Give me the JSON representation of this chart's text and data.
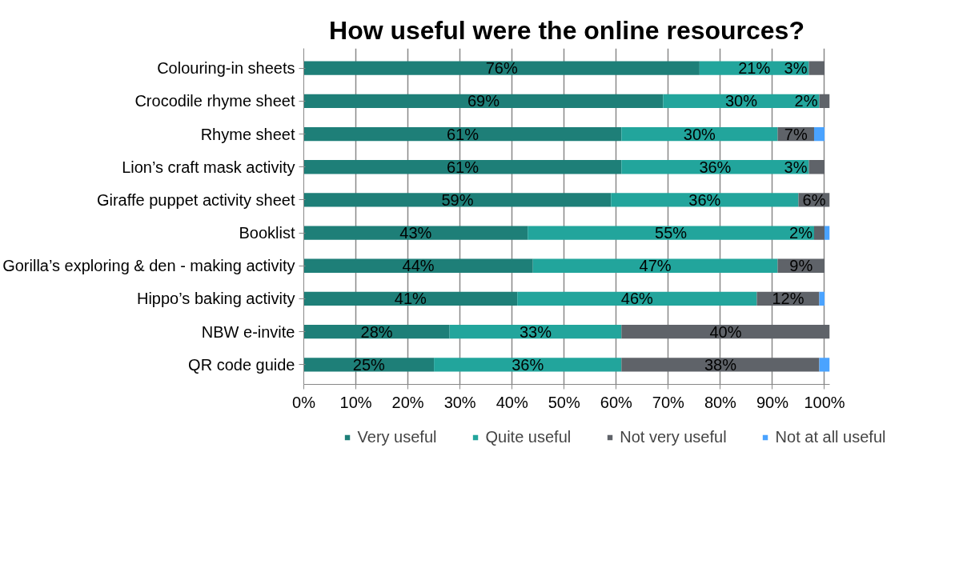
{
  "chart_data": {
    "type": "bar",
    "orientation": "horizontal",
    "stacked": true,
    "title": "How useful were the online resources?",
    "categories": [
      "Colouring-in sheets",
      "Crocodile rhyme sheet",
      "Rhyme sheet",
      "Lion’s craft mask activity",
      "Giraffe puppet activity sheet",
      "Booklist",
      "Gorilla’s exploring & den - making activity",
      "Hippo’s baking activity",
      "NBW e-invite",
      "QR code guide"
    ],
    "series": [
      {
        "name": "Very useful",
        "color": "#1e7f78",
        "values": [
          76,
          69,
          61,
          61,
          59,
          43,
          44,
          41,
          28,
          25
        ],
        "value_labels": [
          "76%",
          "69%",
          "61%",
          "61%",
          "59%",
          "43%",
          "44%",
          "41%",
          "28%",
          "25%"
        ]
      },
      {
        "name": "Quite useful",
        "color": "#22a59c",
        "values": [
          21,
          30,
          30,
          36,
          36,
          55,
          47,
          46,
          33,
          36
        ],
        "value_labels": [
          "21%",
          "30%",
          "30%",
          "36%",
          "36%",
          "55%",
          "47%",
          "46%",
          "33%",
          "36%"
        ]
      },
      {
        "name": "Not very useful",
        "color": "#5f6369",
        "values": [
          3,
          2,
          7,
          3,
          6,
          2,
          9,
          12,
          40,
          38
        ],
        "value_labels": [
          "3%",
          "2%",
          "7%",
          "3%",
          "6%",
          "2%",
          "9%",
          "12%",
          "40%",
          "38%"
        ]
      },
      {
        "name": "Not at all useful",
        "color": "#4aa3ff",
        "values": [
          0,
          0,
          2,
          0,
          0,
          1,
          0,
          1,
          0,
          2
        ],
        "value_labels": [
          null,
          null,
          null,
          null,
          null,
          null,
          null,
          null,
          null,
          null
        ]
      }
    ],
    "xlim": [
      0,
      101
    ],
    "xticks": [
      {
        "value": 0,
        "label": "0%"
      },
      {
        "value": 10,
        "label": "10%"
      },
      {
        "value": 20,
        "label": "20%"
      },
      {
        "value": 30,
        "label": "30%"
      },
      {
        "value": 40,
        "label": "40%"
      },
      {
        "value": 50,
        "label": "50%"
      },
      {
        "value": 60,
        "label": "60%"
      },
      {
        "value": 70,
        "label": "70%"
      },
      {
        "value": 80,
        "label": "80%"
      },
      {
        "value": 90,
        "label": "90%"
      },
      {
        "value": 100,
        "label": "100%"
      }
    ],
    "grid": "x",
    "legend": "bottom"
  }
}
